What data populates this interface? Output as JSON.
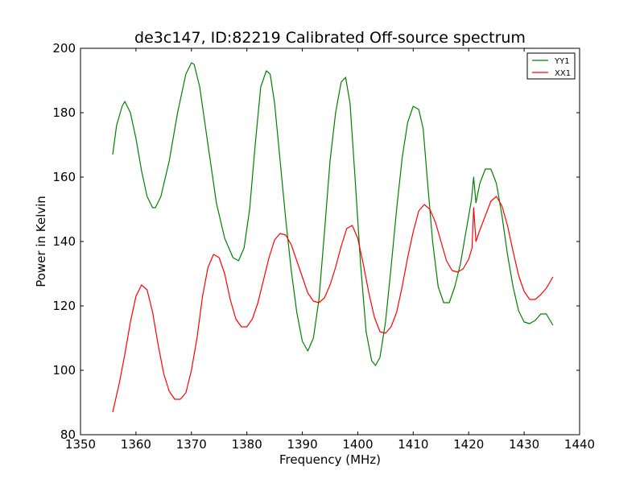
{
  "chart_data": {
    "type": "line",
    "title": "de3c147, ID:82219 Calibrated Off-source spectrum",
    "xlabel": "Frequency (MHz)",
    "ylabel": "Power in Kelvin",
    "xlim": [
      1350,
      1440
    ],
    "ylim": [
      80,
      200
    ],
    "xticks": [
      "1350",
      "1360",
      "1370",
      "1380",
      "1390",
      "1400",
      "1410",
      "1420",
      "1430",
      "1440"
    ],
    "yticks": [
      "80",
      "100",
      "120",
      "140",
      "160",
      "180",
      "200"
    ],
    "grid": false,
    "legend_position": "top-right",
    "series": [
      {
        "name": "YY1",
        "color": "#008000",
        "x": [
          1355.8,
          1356.5,
          1357.5,
          1358.0,
          1359.0,
          1360.0,
          1361.0,
          1362.0,
          1363.0,
          1363.5,
          1364.5,
          1366.0,
          1367.5,
          1369.0,
          1370.0,
          1370.5,
          1371.5,
          1373.0,
          1374.5,
          1376.0,
          1377.5,
          1378.5,
          1379.5,
          1380.5,
          1381.5,
          1382.5,
          1383.5,
          1384.2,
          1385.0,
          1386.0,
          1387.0,
          1388.0,
          1389.0,
          1390.0,
          1391.0,
          1392.0,
          1393.0,
          1394.0,
          1395.0,
          1396.0,
          1397.0,
          1397.8,
          1398.6,
          1399.5,
          1400.5,
          1401.5,
          1402.5,
          1403.2,
          1404.0,
          1405.0,
          1406.0,
          1407.0,
          1408.0,
          1409.0,
          1410.0,
          1411.0,
          1411.8,
          1412.5,
          1413.5,
          1414.5,
          1415.5,
          1416.5,
          1417.5,
          1418.5,
          1419.5,
          1420.5,
          1420.9,
          1421.3,
          1422.0,
          1423.0,
          1424.0,
          1425.0,
          1426.0,
          1427.0,
          1428.0,
          1429.0,
          1430.0,
          1431.0,
          1432.0,
          1433.0,
          1434.0,
          1435.2
        ],
        "values": [
          167,
          176,
          182,
          183.5,
          180,
          172,
          162,
          154,
          150.5,
          150.5,
          154,
          165,
          180,
          192,
          195.5,
          195,
          188,
          170,
          152,
          141,
          135,
          134,
          138,
          150,
          170,
          188,
          193,
          192,
          183,
          165,
          147,
          131,
          118,
          109,
          106,
          110,
          122,
          143,
          165,
          180,
          189.5,
          191,
          183,
          160,
          133,
          112,
          103,
          101.5,
          104,
          115,
          132,
          150,
          166,
          177,
          182,
          181,
          175,
          160,
          140,
          126,
          121,
          121,
          126,
          133,
          143,
          153,
          160,
          152,
          158,
          162.5,
          162.5,
          158,
          148,
          136,
          126,
          118.5,
          115,
          114.5,
          115.5,
          117.5,
          117.5,
          114
        ]
      },
      {
        "name": "XX1",
        "color": "#ff0000",
        "x": [
          1355.8,
          1357.0,
          1358.0,
          1359.0,
          1360.0,
          1361.0,
          1362.0,
          1363.0,
          1364.0,
          1365.0,
          1366.0,
          1367.0,
          1368.0,
          1369.0,
          1370.0,
          1371.0,
          1372.0,
          1373.0,
          1374.0,
          1375.0,
          1376.0,
          1377.0,
          1378.0,
          1379.0,
          1380.0,
          1381.0,
          1382.0,
          1383.0,
          1384.0,
          1385.0,
          1386.0,
          1387.0,
          1388.0,
          1389.0,
          1390.0,
          1391.0,
          1392.0,
          1393.0,
          1394.0,
          1395.0,
          1396.0,
          1397.0,
          1398.0,
          1399.0,
          1400.0,
          1401.0,
          1402.0,
          1403.0,
          1404.0,
          1405.0,
          1406.0,
          1407.0,
          1408.0,
          1409.0,
          1410.0,
          1411.0,
          1412.0,
          1413.0,
          1414.0,
          1415.0,
          1416.0,
          1417.0,
          1418.0,
          1419.0,
          1420.0,
          1420.6,
          1420.9,
          1421.3,
          1422.0,
          1423.0,
          1424.0,
          1425.0,
          1426.0,
          1427.0,
          1428.0,
          1429.0,
          1430.0,
          1431.0,
          1432.0,
          1433.0,
          1434.0,
          1435.2
        ],
        "values": [
          87,
          96,
          105,
          115,
          123,
          126.5,
          125,
          118,
          108,
          99,
          93.5,
          91,
          91,
          93,
          100,
          110,
          123,
          132,
          136,
          135,
          130,
          122,
          116,
          113.5,
          113.5,
          116,
          121,
          128,
          135,
          140.5,
          142.5,
          142,
          139,
          134,
          129,
          124,
          121.5,
          121,
          122.5,
          126.5,
          132,
          138.5,
          144,
          145,
          141,
          133,
          124,
          116.5,
          112,
          111.5,
          113.5,
          118,
          126,
          135,
          143,
          149.5,
          151.5,
          150,
          146,
          140,
          134,
          131,
          130.5,
          131.5,
          134.5,
          138,
          150.5,
          140,
          143.5,
          148,
          152.5,
          154,
          151,
          145,
          137,
          129.5,
          124.5,
          122,
          122,
          123.5,
          125.5,
          129
        ]
      }
    ]
  }
}
